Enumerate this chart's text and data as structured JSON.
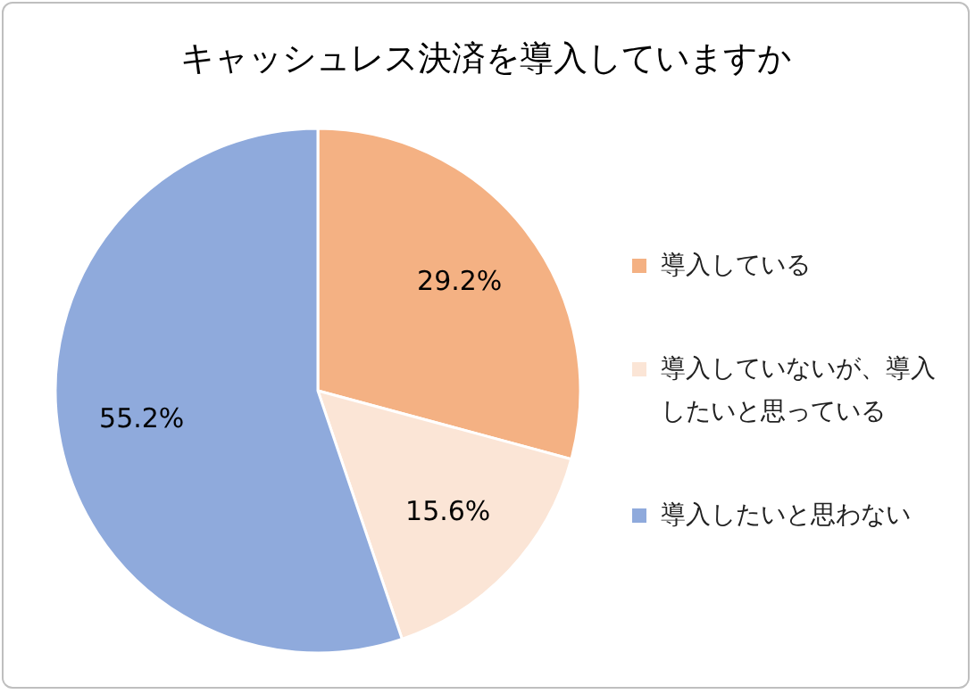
{
  "chart_data": {
    "type": "pie",
    "title": "キャッシュレス決済を導入していますか",
    "categories": [
      "導入している",
      "導入していないが、導入したいと思っている",
      "導入したいと思わない"
    ],
    "values": [
      29.2,
      15.6,
      55.2
    ],
    "colors": [
      "#f4b183",
      "#fbe5d6",
      "#8faadc"
    ],
    "value_labels": [
      "29.2%",
      "15.6%",
      "55.2%"
    ],
    "legend": "right"
  }
}
